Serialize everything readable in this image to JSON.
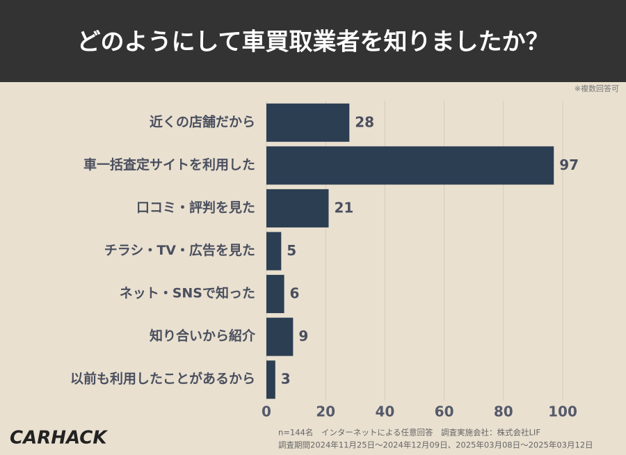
{
  "chart_data": {
    "type": "bar",
    "orientation": "horizontal",
    "title": "どのようにして車買取業者を知りましたか？",
    "note": "※複数回答可",
    "categories": [
      "近くの店舗だから",
      "車一括査定サイトを利用した",
      "口コミ・評判を見た",
      "チラシ・TV・広告を見た",
      "ネット・SNSで知った",
      "知り合いから紹介",
      "以前も利用したことがあるから"
    ],
    "values": [
      28,
      97,
      21,
      5,
      6,
      9,
      3
    ],
    "color": "#2c3e52",
    "xlim": [
      0,
      100
    ],
    "xticks": [
      0,
      20,
      40,
      60,
      80,
      100
    ],
    "grid": true,
    "footnotes": [
      "n=144名　インターネットによる任意回答　調査実施会社：株式会社LIF",
      "調査期間2024年11月25日〜2024年12月09日、2025年03月08日〜2025年03月12日"
    ],
    "brand": "CARHACK"
  }
}
